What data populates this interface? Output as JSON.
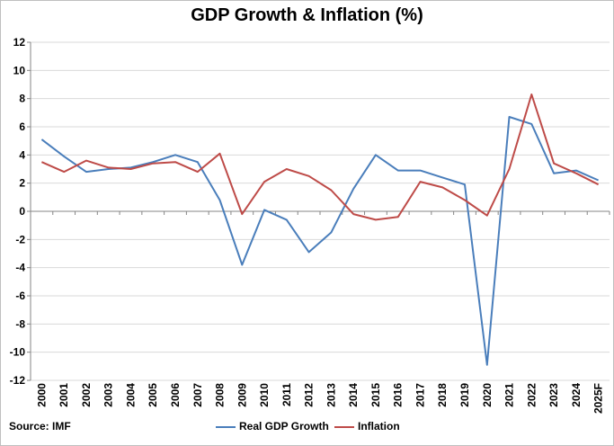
{
  "chart_data": {
    "type": "line",
    "title": "GDP Growth & Inflation (%)",
    "xlabel": "",
    "ylabel": "",
    "ylim": [
      -12,
      12
    ],
    "yticks": [
      12,
      10,
      8,
      6,
      4,
      2,
      0,
      -2,
      -4,
      -6,
      -8,
      -10,
      -12
    ],
    "categories": [
      "2000",
      "2001",
      "2002",
      "2003",
      "2004",
      "2005",
      "2006",
      "2007",
      "2008",
      "2009",
      "2010",
      "2011",
      "2012",
      "2013",
      "2014",
      "2015",
      "2016",
      "2017",
      "2018",
      "2019",
      "2020",
      "2021",
      "2022",
      "2023",
      "2024",
      "2025F"
    ],
    "series": [
      {
        "name": "Real GDP Growth",
        "color": "#4a7ebb",
        "values": [
          5.1,
          3.9,
          2.8,
          3.0,
          3.1,
          3.5,
          4.0,
          3.5,
          0.8,
          -3.8,
          0.1,
          -0.6,
          -2.9,
          -1.5,
          1.6,
          4.0,
          2.9,
          2.9,
          2.4,
          1.9,
          -10.9,
          6.7,
          6.2,
          2.7,
          2.9,
          2.2
        ]
      },
      {
        "name": "Inflation",
        "color": "#be4b48",
        "values": [
          3.5,
          2.8,
          3.6,
          3.1,
          3.0,
          3.4,
          3.5,
          2.8,
          4.1,
          -0.2,
          2.1,
          3.0,
          2.5,
          1.5,
          -0.2,
          -0.6,
          -0.4,
          2.1,
          1.7,
          0.8,
          -0.3,
          3.0,
          8.3,
          3.4,
          2.7,
          1.9
        ]
      }
    ],
    "grid": "horizontal",
    "legend_position": "bottom"
  },
  "source": "Source: IMF"
}
